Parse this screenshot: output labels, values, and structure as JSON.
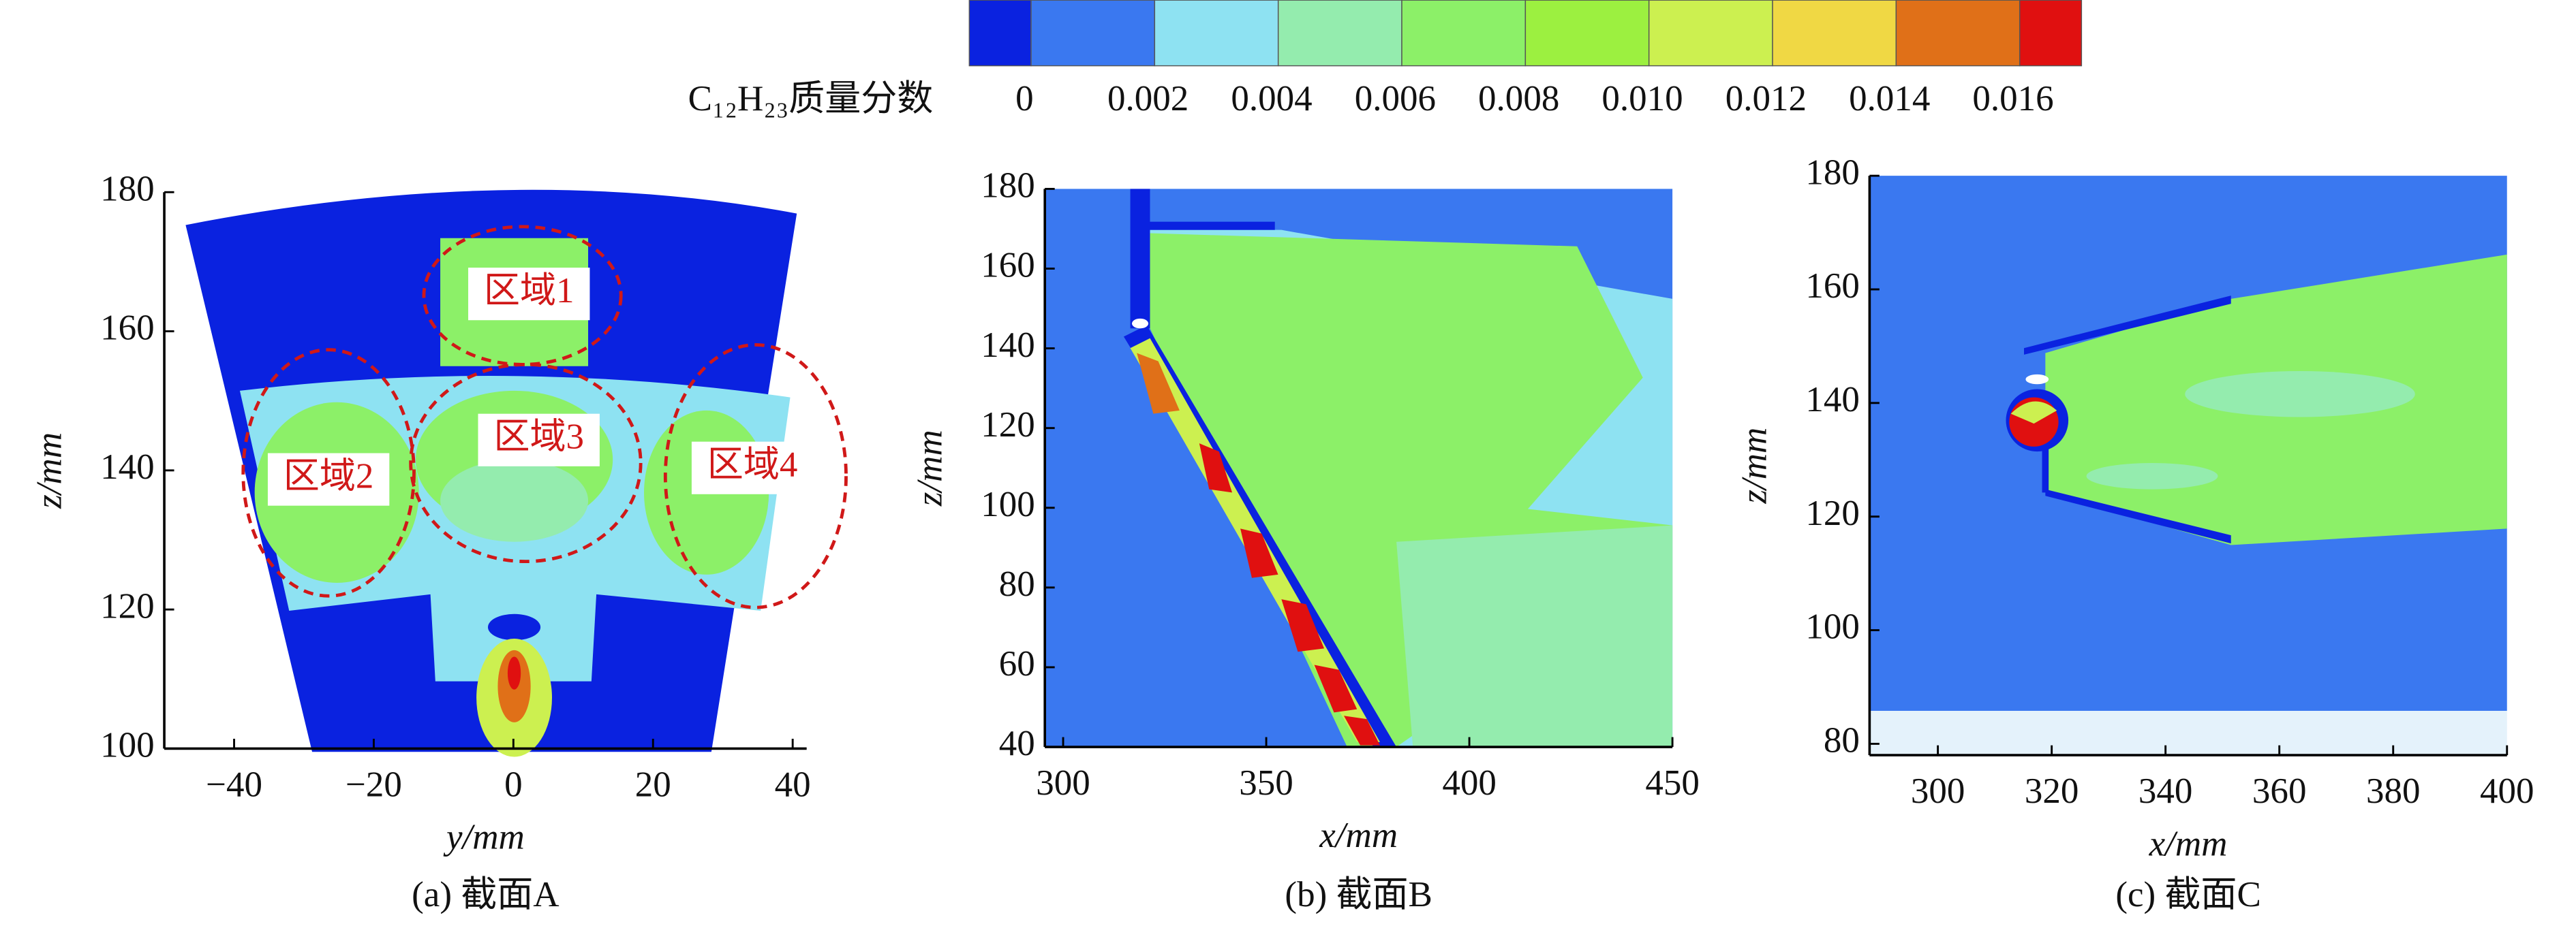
{
  "colorbar": {
    "label": "C₁₂H₂₃质量分数",
    "clim": [
      -0.001,
      0.017
    ],
    "ticks": [
      0,
      0.002,
      0.004,
      0.006,
      0.008,
      {
        "value": 0.01,
        "label": "0.010"
      },
      0.012,
      0.014,
      0.016
    ],
    "colors": [
      "#0a22e0",
      "#3a78f0",
      "#8ee2f2",
      "#94ecae",
      "#8cf068",
      "#9cf040",
      "#ccf050",
      "#f0d844",
      "#e07018",
      "#e01010"
    ]
  },
  "chart_data": [
    {
      "type": "contour",
      "xlabel": "y/mm",
      "ylabel": "z/mm",
      "caption": "(a) 截面A",
      "xlim": [
        -50,
        42
      ],
      "ylim": [
        100,
        180
      ],
      "xticks": [
        {
          "value": -40,
          "label": "−40"
        },
        {
          "value": -20,
          "label": "−20"
        },
        0,
        20,
        40
      ],
      "yticks": [
        100,
        120,
        140,
        160,
        180
      ],
      "annotations": [
        "区域1",
        "区域2",
        "区域3",
        "区域4"
      ]
    },
    {
      "type": "contour",
      "xlabel": "x/mm",
      "ylabel": "z/mm",
      "caption": "(b) 截面B",
      "xlim": [
        295.5,
        450
      ],
      "ylim": [
        40,
        180
      ],
      "xticks": [
        300,
        350,
        400,
        450
      ],
      "yticks": [
        40,
        60,
        80,
        100,
        120,
        140,
        160,
        180
      ]
    },
    {
      "type": "contour",
      "xlabel": "x/mm",
      "ylabel": "z/mm",
      "caption": "(c) 截面C",
      "xlim": [
        288,
        400
      ],
      "ylim": [
        78,
        180
      ],
      "xticks": [
        300,
        320,
        340,
        360,
        380,
        400
      ],
      "yticks": [
        80,
        100,
        120,
        140,
        160,
        180
      ]
    }
  ]
}
